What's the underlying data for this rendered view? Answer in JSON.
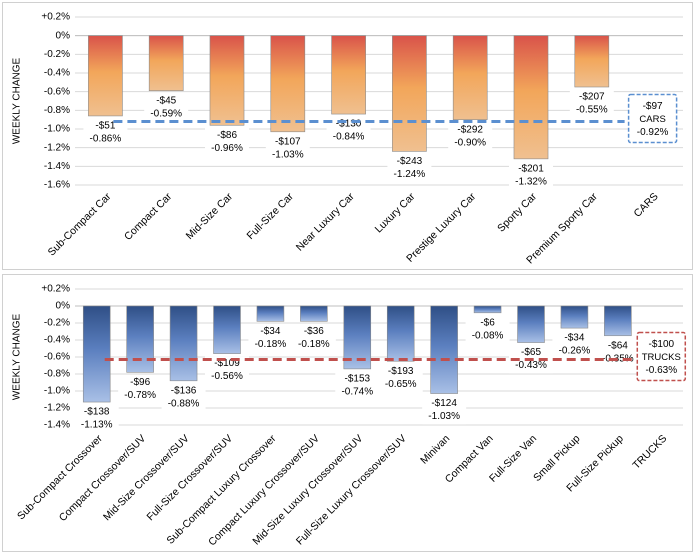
{
  "chart_data": [
    {
      "type": "bar",
      "panel": "cars",
      "ylabel": "WEEKLY CHANGE",
      "ylim": [
        -1.6,
        0.2
      ],
      "yticks": [
        0.2,
        0,
        -0.2,
        -0.4,
        -0.6,
        -0.8,
        -1.0,
        -1.2,
        -1.4,
        -1.6
      ],
      "ytick_labels": [
        "+0.2%",
        "0%",
        "-0.2%",
        "-0.4%",
        "-0.6%",
        "-0.8%",
        "-1.0%",
        "-1.2%",
        "-1.4%",
        "-1.6%"
      ],
      "categories": [
        "Sub-Compact Car",
        "Compact Car",
        "Mid-Size Car",
        "Full-Size Car",
        "Near Luxury Car",
        "Luxury Car",
        "Prestige Luxury Car",
        "Sporty Car",
        "Premium Sporty Car",
        "CARS"
      ],
      "values": [
        -0.86,
        -0.59,
        -0.96,
        -1.03,
        -0.84,
        -1.24,
        -0.9,
        -1.32,
        -0.55,
        null
      ],
      "dollar_labels": [
        "-$51",
        "-$45",
        "-$86",
        "-$107",
        "-$130",
        "-$243",
        "-$292",
        "-$201",
        "-$207",
        ""
      ],
      "pct_labels": [
        "-0.86%",
        "-0.59%",
        "-0.96%",
        "-1.03%",
        "-0.84%",
        "-1.24%",
        "-0.90%",
        "-1.32%",
        "-0.55%",
        ""
      ],
      "average": {
        "value": -0.92,
        "dollar": "-$97",
        "name": "CARS",
        "pct": "-0.92%",
        "color": "#5b8fd0"
      },
      "bar_color_top": "#d9534a",
      "bar_color_mid": "#f2a65a",
      "bar_color_bottom": "#f0c090"
    },
    {
      "type": "bar",
      "panel": "trucks",
      "ylabel": "WEEKLY CHANGE",
      "ylim": [
        -1.4,
        0.2
      ],
      "yticks": [
        0.2,
        0,
        -0.2,
        -0.4,
        -0.6,
        -0.8,
        -1.0,
        -1.2,
        -1.4
      ],
      "ytick_labels": [
        "+0.2%",
        "0%",
        "-0.2%",
        "-0.4%",
        "-0.6%",
        "-0.8%",
        "-1.0%",
        "-1.2%",
        "-1.4%"
      ],
      "categories": [
        "Sub-Compact Crossover",
        "Compact Crossover/SUV",
        "Mid-Size Crossover/SUV",
        "Full-Size Crossover/SUV",
        "Sub-Compact Luxury Crossover",
        "Compact Luxury Crossover/SUV",
        "Mid-Size Luxury Crossover/SUV",
        "Full-Size Luxury Crossover/SUV",
        "Minivan",
        "Compact Van",
        "Full-Size Van",
        "Small Pickup",
        "Full-Size Pickup",
        "TRUCKS"
      ],
      "values": [
        -1.13,
        -0.78,
        -0.88,
        -0.56,
        -0.18,
        -0.18,
        -0.74,
        -0.65,
        -1.03,
        -0.08,
        -0.43,
        -0.26,
        -0.35,
        null
      ],
      "dollar_labels": [
        "-$138",
        "-$96",
        "-$136",
        "-$109",
        "-$34",
        "-$36",
        "-$153",
        "-$193",
        "-$124",
        "-$6",
        "-$65",
        "-$34",
        "-$64",
        ""
      ],
      "pct_labels": [
        "-1.13%",
        "-0.78%",
        "-0.88%",
        "-0.56%",
        "-0.18%",
        "-0.18%",
        "-0.74%",
        "-0.65%",
        "-1.03%",
        "-0.08%",
        "-0.43%",
        "-0.26%",
        "-0.35%",
        ""
      ],
      "average": {
        "value": -0.63,
        "dollar": "-$100",
        "name": "TRUCKS",
        "pct": "-0.63%",
        "color": "#c0504d"
      },
      "bar_color_top": "#2f4f86",
      "bar_color_mid": "#5b7fbf",
      "bar_color_bottom": "#a9c0e6"
    }
  ]
}
